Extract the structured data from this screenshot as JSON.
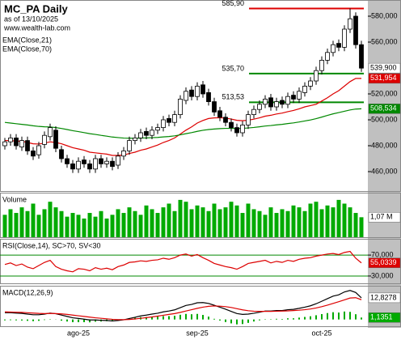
{
  "chart_data": [
    {
      "type": "candlestick",
      "title": "MC_PA Daily",
      "subtitle": "as of 13/10/2025",
      "source": "www.wealth-lab.com",
      "categories": [
        null,
        null,
        null,
        null,
        null,
        null,
        null,
        null,
        null,
        null,
        null,
        null,
        null,
        "ago-25",
        null,
        null,
        null,
        null,
        null,
        null,
        null,
        null,
        null,
        null,
        null,
        null,
        null,
        null,
        null,
        null,
        null,
        null,
        null,
        null,
        "sep-25",
        null,
        null,
        null,
        null,
        null,
        null,
        null,
        null,
        null,
        null,
        null,
        null,
        null,
        null,
        null,
        null,
        null,
        null,
        null,
        null,
        null,
        "oct-25",
        null,
        null,
        null,
        null,
        null,
        null,
        null
      ],
      "open": [
        480,
        483,
        486,
        479,
        484,
        476,
        473,
        481,
        487,
        492,
        477,
        470,
        466,
        462,
        469,
        466,
        462,
        470,
        466,
        468,
        465,
        472,
        476,
        484,
        486,
        491,
        488,
        492,
        494,
        501,
        498,
        504,
        515,
        523,
        518,
        527,
        521,
        514,
        507,
        502,
        498,
        494,
        490,
        496,
        504,
        508,
        512,
        517,
        510,
        515,
        512,
        519,
        516,
        521,
        526,
        530,
        538,
        546,
        552,
        559,
        556,
        570,
        580,
        558
      ],
      "high": [
        486,
        489,
        489,
        487,
        487,
        479,
        483,
        491,
        497,
        495,
        480,
        473,
        469,
        471,
        472,
        469,
        473,
        473,
        471,
        471,
        475,
        479,
        487,
        489,
        493,
        494,
        495,
        497,
        503,
        504,
        507,
        519,
        525,
        526,
        529,
        530,
        524,
        517,
        510,
        505,
        501,
        497,
        499,
        507,
        511,
        515,
        519,
        520,
        517,
        518,
        521,
        522,
        525,
        529,
        533,
        541,
        549,
        555,
        561,
        562,
        573,
        585.9,
        583,
        561
      ],
      "low": [
        477,
        480,
        477,
        476,
        473,
        469,
        470,
        478,
        484,
        475,
        467,
        463,
        459,
        459,
        463,
        459,
        459,
        463,
        463,
        461,
        462,
        469,
        473,
        481,
        483,
        485,
        485,
        489,
        491,
        495,
        495,
        501,
        512,
        515,
        515,
        517,
        511,
        503,
        499,
        495,
        491,
        487,
        487,
        493,
        501,
        505,
        509,
        507,
        507,
        509,
        509,
        513,
        513,
        518,
        523,
        527,
        535,
        543,
        549,
        553,
        553,
        567,
        555,
        537
      ],
      "close": [
        483,
        486,
        480,
        484,
        476,
        472,
        480,
        488,
        494,
        478,
        470,
        466,
        462,
        468,
        466,
        462,
        470,
        466,
        468,
        464,
        472,
        476,
        484,
        486,
        490,
        488,
        492,
        494,
        500,
        498,
        504,
        516,
        522,
        518,
        526,
        520,
        514,
        506,
        502,
        498,
        494,
        490,
        496,
        504,
        508,
        512,
        516,
        510,
        514,
        512,
        518,
        516,
        522,
        526,
        530,
        538,
        546,
        552,
        558,
        556,
        570,
        578,
        558,
        539.9
      ],
      "close_label": "539,900",
      "up_color": "#ffffff",
      "down_color": "#000000",
      "series": [
        {
          "name": "EMA(Close,21)",
          "color": "#dd0000",
          "last_label": "531,954",
          "values": [
            484,
            484,
            483.5,
            483.5,
            482.5,
            481.5,
            481.3,
            482,
            483,
            482.5,
            481.5,
            480,
            478.5,
            477.5,
            476.5,
            475,
            474.5,
            474,
            473.5,
            472.5,
            472.5,
            472.8,
            474,
            475,
            476.5,
            477.5,
            479,
            480.5,
            482.5,
            484,
            486,
            489,
            492,
            494.5,
            497.5,
            499.5,
            501,
            501.5,
            501.6,
            501.3,
            500.6,
            499.6,
            499.3,
            499.7,
            500.5,
            501.5,
            502.8,
            503.5,
            504.5,
            505.2,
            506.3,
            507.2,
            508.5,
            510,
            511,
            512,
            514.5,
            517,
            520,
            522.5,
            526,
            529.5,
            532,
            531.954
          ]
        },
        {
          "name": "EMA(Close,70)",
          "color": "#008800",
          "last_label": "508,534",
          "values": [
            498,
            497.5,
            497,
            496.5,
            496,
            495.4,
            494.9,
            494.6,
            494.5,
            494,
            493.3,
            492.5,
            491.6,
            490.9,
            490.1,
            489.3,
            488.7,
            488,
            487.4,
            486.7,
            486.3,
            485.9,
            485.8,
            485.8,
            485.9,
            486,
            486.2,
            486.4,
            486.8,
            487.1,
            487.6,
            488.4,
            489.3,
            490.1,
            491.1,
            491.9,
            492.5,
            492.9,
            493.2,
            493.4,
            493.4,
            493.3,
            493.4,
            493.7,
            494.1,
            494.6,
            495.2,
            495.6,
            496.1,
            496.5,
            497.1,
            497.6,
            498.3,
            499.1,
            499.9,
            500.9,
            502.1,
            503.4,
            504.6,
            505.6,
            506.6,
            507.6,
            508.3,
            508.534
          ]
        }
      ],
      "levels": [
        {
          "value": 585.9,
          "label": "585,90",
          "color": "#dd0000"
        },
        {
          "value": 535.7,
          "label": "535,70",
          "color": "#008800"
        },
        {
          "value": 513.53,
          "label": "513,53",
          "color": "#008800"
        }
      ],
      "ylim": [
        445,
        591.25
      ],
      "yticks": [
        {
          "value": 580,
          "label": "580,000"
        },
        {
          "value": 560,
          "label": "560,000"
        },
        {
          "value": 520,
          "label": "520,000"
        },
        {
          "value": 500,
          "label": "500,000"
        },
        {
          "value": 480,
          "label": "480,000"
        },
        {
          "value": 460,
          "label": "460,000"
        }
      ]
    },
    {
      "type": "bar",
      "title": "Volume",
      "color": "#00aa00",
      "last_label": "1,07 M",
      "ylim": [
        0,
        2.3
      ],
      "values": [
        1.2,
        1.5,
        1.3,
        1.6,
        1.4,
        1.8,
        1.2,
        1.5,
        1.9,
        1.6,
        1.4,
        1.1,
        1.3,
        1.2,
        1.0,
        1.3,
        1.1,
        1.4,
        1.0,
        1.2,
        1.5,
        1.3,
        1.6,
        1.4,
        1.2,
        1.7,
        1.5,
        1.3,
        1.6,
        1.8,
        1.4,
        2.0,
        1.9,
        1.5,
        1.7,
        1.6,
        1.4,
        1.8,
        1.5,
        1.6,
        1.9,
        1.7,
        1.3,
        1.8,
        1.5,
        1.4,
        1.2,
        1.6,
        1.3,
        1.5,
        1.4,
        1.7,
        1.6,
        1.4,
        1.8,
        1.9,
        1.5,
        1.7,
        1.6,
        2.0,
        1.8,
        1.6,
        1.3,
        1.07
      ]
    },
    {
      "type": "line",
      "title": "RSI(Close,14), SC>70, SV<30",
      "ylim": [
        16,
        98
      ],
      "tick_line_color": "#008800",
      "yticks": [
        {
          "value": 70,
          "label": "70,000"
        },
        {
          "value": 30,
          "label": "30,000"
        }
      ],
      "series": [
        {
          "color": "#dd0000",
          "last_label": "55,0339",
          "values": [
            52,
            55,
            50,
            53,
            47,
            44,
            50,
            56,
            60,
            48,
            43,
            40,
            38,
            44,
            43,
            40,
            46,
            43,
            45,
            42,
            48,
            51,
            56,
            57,
            59,
            58,
            60,
            61,
            64,
            62,
            65,
            70,
            72,
            68,
            71,
            65,
            60,
            54,
            51,
            48,
            46,
            43,
            48,
            54,
            56,
            58,
            60,
            55,
            58,
            56,
            60,
            58,
            62,
            64,
            65,
            68,
            70,
            72,
            73,
            71,
            75,
            77,
            64,
            55.0339
          ]
        }
      ]
    },
    {
      "type": "macd",
      "title": "MACD(12,26,9)",
      "ylim": [
        -4,
        19
      ],
      "series": [
        {
          "color": "#000000",
          "last_label": "12,8278",
          "values": [
            4,
            4,
            3.8,
            3.6,
            3.2,
            2.8,
            2.8,
            3.2,
            3.8,
            3.4,
            2.6,
            1.8,
            1,
            0.6,
            0.2,
            -0.3,
            -0.3,
            -0.5,
            -0.6,
            -0.9,
            -0.6,
            -0.2,
            0.6,
            1.3,
            2.1,
            2.6,
            3.2,
            3.7,
            4.5,
            5,
            5.7,
            7,
            8.3,
            8.9,
            9.9,
            10,
            9.5,
            8.4,
            7.3,
            6.1,
            4.8,
            3.5,
            3,
            3.2,
            3.7,
            4.3,
            5,
            5,
            5.3,
            5.3,
            5.8,
            6,
            6.6,
            7.3,
            8.1,
            9.3,
            10.8,
            12.3,
            13.8,
            14.6,
            16.3,
            17.2,
            16,
            12.8278
          ]
        },
        {
          "color": "#dd0000",
          "values": [
            4.5,
            4.4,
            4.3,
            4.2,
            4,
            3.8,
            3.6,
            3.5,
            3.6,
            3.5,
            3.3,
            3,
            2.6,
            2.2,
            1.8,
            1.4,
            1,
            0.7,
            0.4,
            0.1,
            -0.1,
            -0.1,
            0,
            0.3,
            0.7,
            1.1,
            1.5,
            2,
            2.5,
            3,
            3.5,
            4.2,
            5,
            5.8,
            6.6,
            7.3,
            7.8,
            8,
            7.9,
            7.6,
            7.1,
            6.4,
            5.7,
            5.2,
            4.9,
            4.8,
            4.8,
            4.8,
            4.9,
            5,
            5.1,
            5.3,
            5.5,
            5.8,
            6.2,
            6.8,
            7.6,
            8.5,
            9.5,
            10.5,
            11.6,
            12.7,
            12.9,
            11.6927
          ]
        }
      ],
      "histogram": {
        "color": "#00aa00",
        "last_label": "1,1351",
        "values": [
          -0.5,
          -0.4,
          -0.5,
          -0.6,
          -0.8,
          -1,
          -0.8,
          -0.3,
          0.2,
          -0.1,
          -0.7,
          -1.2,
          -1.6,
          -1.6,
          -1.6,
          -1.7,
          -1.3,
          -1.2,
          -1,
          -1,
          -0.5,
          -0.1,
          0.6,
          1,
          1.4,
          1.5,
          1.7,
          1.7,
          2,
          2,
          2.2,
          2.8,
          3.3,
          3.1,
          3.3,
          2.7,
          1.7,
          0.4,
          -0.6,
          -1.5,
          -2.3,
          -2.9,
          -2.7,
          -2,
          -1.2,
          -0.5,
          0.2,
          0.2,
          0.4,
          0.3,
          0.7,
          0.7,
          1.1,
          1.5,
          1.9,
          2.5,
          3.2,
          3.8,
          4.3,
          4.1,
          4.7,
          4.5,
          3.1,
          1.1351
        ]
      }
    }
  ]
}
